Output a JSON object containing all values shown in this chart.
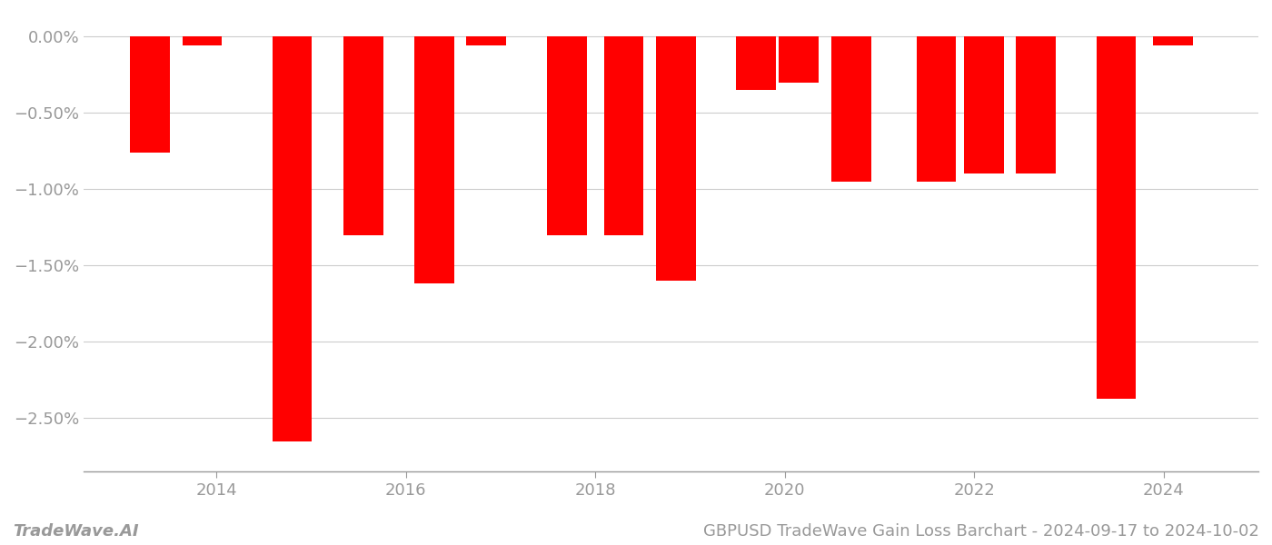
{
  "years": [
    2013.3,
    2013.85,
    2014.8,
    2015.55,
    2016.3,
    2016.85,
    2017.7,
    2018.3,
    2018.85,
    2019.7,
    2020.15,
    2020.7,
    2021.6,
    2022.1,
    2022.65,
    2023.5,
    2024.1
  ],
  "values": [
    -0.76,
    -0.06,
    -2.65,
    -1.3,
    -1.62,
    -0.06,
    -1.3,
    -1.3,
    -1.6,
    -0.35,
    -0.3,
    -0.95,
    -0.95,
    -0.9,
    -0.9,
    -2.37,
    -0.06
  ],
  "bar_color": "#ff0000",
  "bar_width": 0.42,
  "xlim": [
    2012.6,
    2025.0
  ],
  "ylim": [
    -2.85,
    0.15
  ],
  "yticks": [
    0.0,
    -0.5,
    -1.0,
    -1.5,
    -2.0,
    -2.5
  ],
  "ytick_labels": [
    "0.00%",
    "−0.50%",
    "−1.00%",
    "−1.50%",
    "−2.00%",
    "−2.50%"
  ],
  "xticks": [
    2014,
    2016,
    2018,
    2020,
    2022,
    2024
  ],
  "grid_color": "#cccccc",
  "background_color": "#ffffff",
  "footer_left": "TradeWave.AI",
  "footer_right": "GBPUSD TradeWave Gain Loss Barchart - 2024-09-17 to 2024-10-02",
  "tick_color": "#999999",
  "spine_color": "#999999",
  "font_size_footer": 13,
  "font_size_ticks": 13
}
